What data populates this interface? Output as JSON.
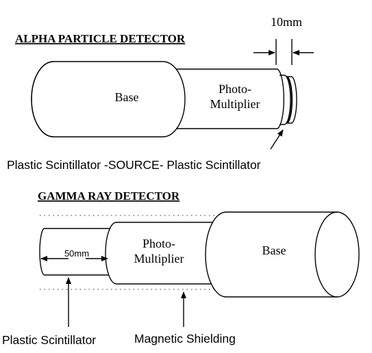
{
  "alpha": {
    "title": "ALPHA PARTICLE DETECTOR",
    "base_label": "Base",
    "pmt_label_line1": "Photo-",
    "pmt_label_line2": "Multiplier",
    "gap_label": "10mm",
    "caption": "Plastic Scintillator -SOURCE- Plastic Scintillator"
  },
  "gamma": {
    "title": "GAMMA RAY DETECTOR",
    "base_label": "Base",
    "pmt_label_line1": "Photo-",
    "pmt_label_line2": "Multiplier",
    "length_label": "50mm",
    "scintillator_label": "Plastic Scintillator",
    "shielding_label": "Magnetic Shielding"
  }
}
